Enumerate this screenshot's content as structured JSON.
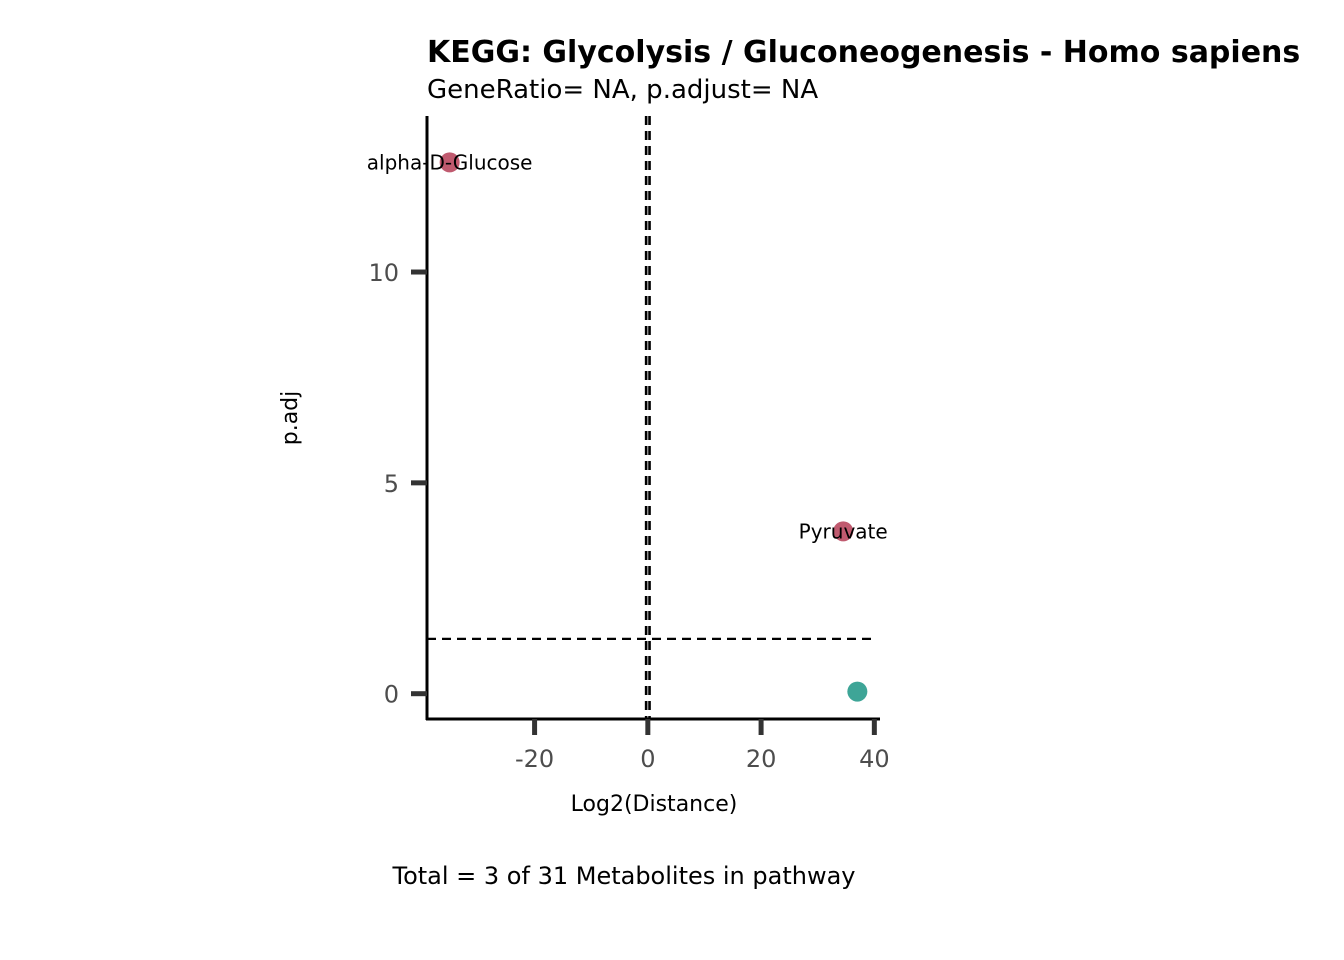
{
  "chart_data": {
    "type": "scatter",
    "title": "KEGG: Glycolysis / Gluconeogenesis - Homo sapiens",
    "subtitle": "GeneRatio= NA, p.adjust= NA",
    "xlabel": "Log2(Distance)",
    "ylabel": "p.adj",
    "caption": "Total = 3 of 31 Metabolites in pathway",
    "xlim": [
      -39,
      41
    ],
    "ylim": [
      -0.6,
      13.7
    ],
    "x_ticks": [
      -20,
      0,
      20,
      40
    ],
    "x_tick_labels": [
      "-20",
      "0",
      "20",
      "40"
    ],
    "y_ticks": [
      0,
      5,
      10
    ],
    "y_tick_labels": [
      "0",
      "5",
      "10"
    ],
    "vlines": [
      -0.3,
      0.3
    ],
    "hline": 1.3,
    "grid": false,
    "points": [
      {
        "x": -35,
        "y": 12.6,
        "label": "alpha-D-Glucose",
        "color": "#c05a6f"
      },
      {
        "x": 34.5,
        "y": 3.85,
        "label": "Pyruvate",
        "color": "#c05a6f"
      },
      {
        "x": 37,
        "y": 0.05,
        "label": "",
        "color": "#3ea597"
      }
    ]
  }
}
